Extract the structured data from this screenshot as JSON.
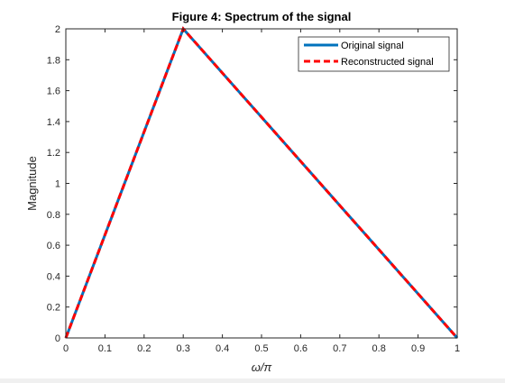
{
  "chart_data": {
    "type": "line",
    "title": "Figure 4: Spectrum of the signal",
    "xlabel": "ω/π",
    "ylabel": "Magnitude",
    "xlim": [
      0,
      1
    ],
    "ylim": [
      0,
      2
    ],
    "x_ticks": [
      0,
      0.1,
      0.2,
      0.3,
      0.4,
      0.5,
      0.6,
      0.7,
      0.8,
      0.9,
      1
    ],
    "y_ticks": [
      0,
      0.2,
      0.4,
      0.6,
      0.8,
      1,
      1.2,
      1.4,
      1.6,
      1.8,
      2
    ],
    "grid": false,
    "legend_position": "top-right",
    "series": [
      {
        "name": "Original signal",
        "x": [
          0,
          0.3,
          1
        ],
        "y": [
          0,
          2,
          0
        ],
        "color": "#0072bd",
        "style": "solid"
      },
      {
        "name": "Reconstructed signal",
        "x": [
          0,
          0.3,
          1
        ],
        "y": [
          0,
          2,
          0
        ],
        "color": "#ff0000",
        "style": "dashed"
      }
    ]
  }
}
